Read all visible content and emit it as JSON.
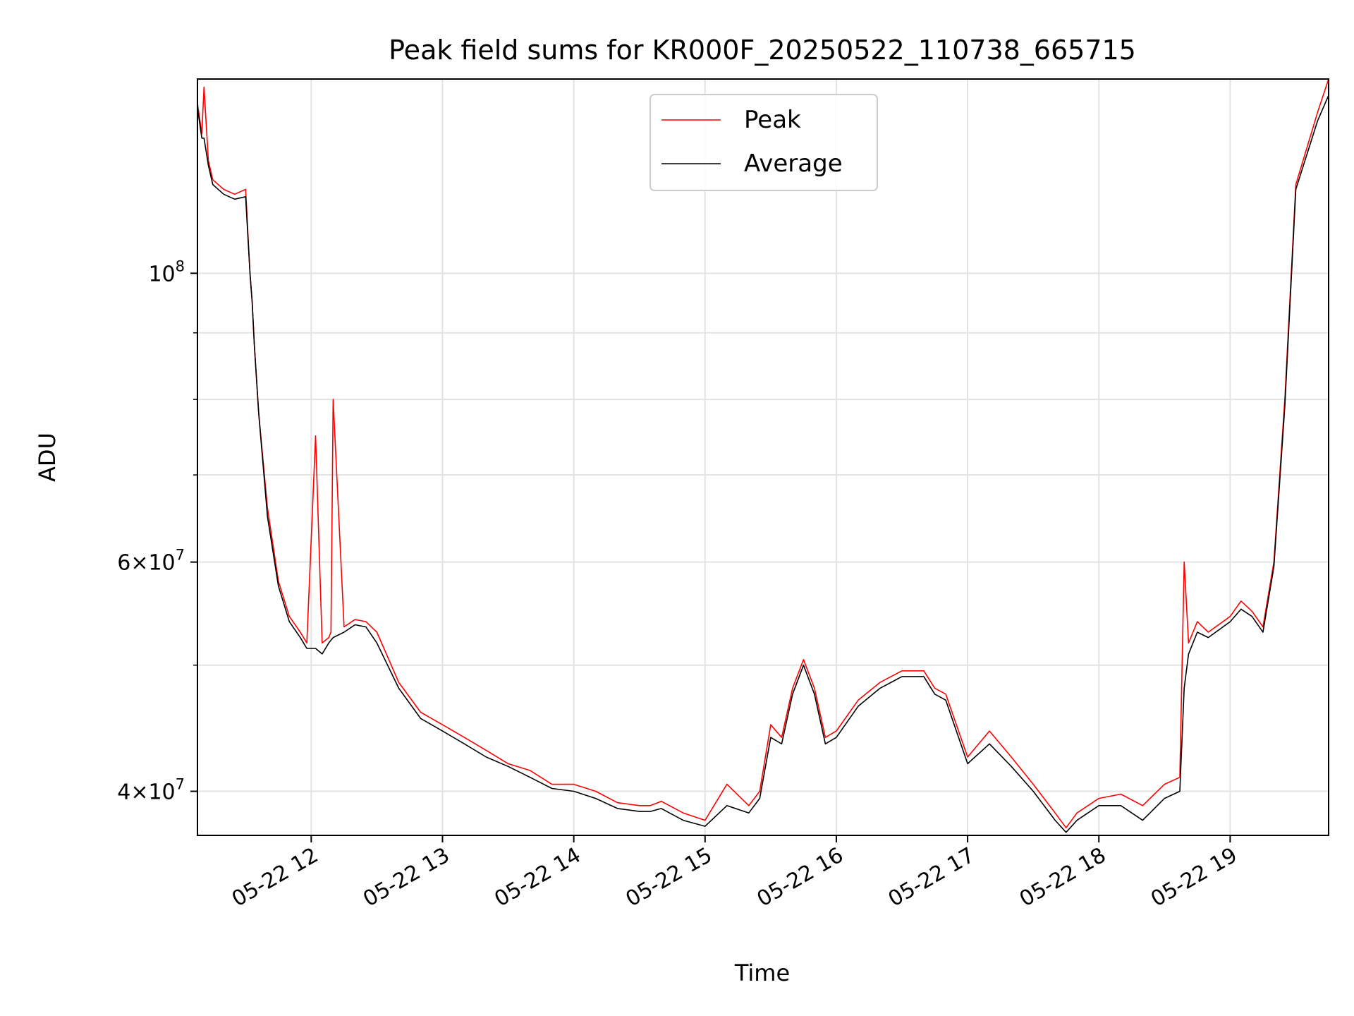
{
  "chart_data": {
    "type": "line",
    "title": "Peak field sums for KR000F_20250522_110738_665715",
    "xlabel": "Time",
    "ylabel": "ADU",
    "y_scale": "log",
    "ylim": [
      37000000,
      141000000
    ],
    "xlim": [
      "2025-05-22 11:08",
      "2025-05-22 19:45"
    ],
    "x_ticks": [
      "05-22 12",
      "05-22 13",
      "05-22 14",
      "05-22 15",
      "05-22 16",
      "05-22 17",
      "05-22 18",
      "05-22 19"
    ],
    "y_tick_labels": [
      {
        "value": 40000000,
        "mantissa": "4",
        "exponent": "7"
      },
      {
        "value": 60000000,
        "mantissa": "6",
        "exponent": "7"
      },
      {
        "value": 100000000,
        "mantissa": "",
        "exponent": "8"
      }
    ],
    "y_minor_ticks": [
      50000000,
      70000000,
      80000000,
      90000000
    ],
    "grid": true,
    "legend_position": "top-center",
    "series": [
      {
        "name": "Peak",
        "color": "#ff0000",
        "x": [
          "11:08",
          "11:10",
          "11:11",
          "11:13",
          "11:14",
          "11:15",
          "11:20",
          "11:25",
          "11:30",
          "11:32",
          "11:33",
          "11:34",
          "11:36",
          "11:40",
          "11:45",
          "11:50",
          "11:55",
          "11:58",
          "12:02",
          "12:05",
          "12:08",
          "12:09",
          "12:10",
          "12:15",
          "12:20",
          "12:25",
          "12:30",
          "12:40",
          "12:50",
          "13:00",
          "13:10",
          "13:20",
          "13:30",
          "13:40",
          "13:50",
          "14:00",
          "14:10",
          "14:20",
          "14:30",
          "14:35",
          "14:40",
          "14:50",
          "15:00",
          "15:10",
          "15:20",
          "15:25",
          "15:30",
          "15:35",
          "15:40",
          "15:45",
          "15:50",
          "15:55",
          "16:00",
          "16:10",
          "16:20",
          "16:30",
          "16:40",
          "16:45",
          "16:50",
          "17:00",
          "17:10",
          "17:20",
          "17:30",
          "17:40",
          "17:45",
          "17:50",
          "18:00",
          "18:10",
          "18:20",
          "18:30",
          "18:37",
          "18:39",
          "18:41",
          "18:45",
          "18:50",
          "19:00",
          "19:05",
          "19:10",
          "19:15",
          "19:20",
          "19:25",
          "19:30",
          "19:40",
          "19:45"
        ],
        "y": [
          135000000,
          128000000,
          139000000,
          122000000,
          120000000,
          118000000,
          116000000,
          115000000,
          116000000,
          100000000,
          95000000,
          88000000,
          78000000,
          66000000,
          58000000,
          54500000,
          53000000,
          52000000,
          75000000,
          52000000,
          52500000,
          53000000,
          80000000,
          53500000,
          54200000,
          54000000,
          53000000,
          48500000,
          46000000,
          45000000,
          44000000,
          43000000,
          42000000,
          41500000,
          40500000,
          40500000,
          40000000,
          39200000,
          39000000,
          39000000,
          39300000,
          38500000,
          38000000,
          40500000,
          39000000,
          40000000,
          45000000,
          44000000,
          48000000,
          50500000,
          48000000,
          44000000,
          44500000,
          47000000,
          48500000,
          49500000,
          49500000,
          48000000,
          47500000,
          42500000,
          44500000,
          42500000,
          40500000,
          38500000,
          37500000,
          38500000,
          39500000,
          39800000,
          39000000,
          40500000,
          41000000,
          60000000,
          52000000,
          54000000,
          53000000,
          54500000,
          56000000,
          55000000,
          53500000,
          60000000,
          80000000,
          117000000,
          133000000,
          141000000
        ]
      },
      {
        "name": "Average",
        "color": "#000000",
        "x": [
          "11:08",
          "11:10",
          "11:11",
          "11:13",
          "11:14",
          "11:15",
          "11:20",
          "11:25",
          "11:30",
          "11:32",
          "11:33",
          "11:34",
          "11:36",
          "11:40",
          "11:45",
          "11:50",
          "11:55",
          "11:58",
          "12:02",
          "12:05",
          "12:08",
          "12:10",
          "12:15",
          "12:20",
          "12:25",
          "12:30",
          "12:40",
          "12:50",
          "13:00",
          "13:10",
          "13:20",
          "13:30",
          "13:40",
          "13:50",
          "14:00",
          "14:10",
          "14:20",
          "14:30",
          "14:35",
          "14:40",
          "14:50",
          "15:00",
          "15:10",
          "15:20",
          "15:25",
          "15:30",
          "15:35",
          "15:40",
          "15:45",
          "15:50",
          "15:55",
          "16:00",
          "16:10",
          "16:20",
          "16:30",
          "16:40",
          "16:45",
          "16:50",
          "17:00",
          "17:10",
          "17:20",
          "17:30",
          "17:40",
          "17:45",
          "17:50",
          "18:00",
          "18:10",
          "18:20",
          "18:30",
          "18:37",
          "18:39",
          "18:41",
          "18:45",
          "18:50",
          "19:00",
          "19:05",
          "19:10",
          "19:15",
          "19:20",
          "19:25",
          "19:30",
          "19:40",
          "19:45"
        ],
        "y": [
          134000000,
          127000000,
          127000000,
          121000000,
          119000000,
          117000000,
          115000000,
          114000000,
          114500000,
          100000000,
          95000000,
          88000000,
          78000000,
          65000000,
          57500000,
          54000000,
          52500000,
          51500000,
          51500000,
          51000000,
          52000000,
          52500000,
          53000000,
          53700000,
          53500000,
          52000000,
          48000000,
          45500000,
          44500000,
          43500000,
          42500000,
          41800000,
          41000000,
          40200000,
          40000000,
          39500000,
          38800000,
          38600000,
          38600000,
          38800000,
          38000000,
          37600000,
          39000000,
          38500000,
          39500000,
          44000000,
          43500000,
          47500000,
          50000000,
          47500000,
          43500000,
          44000000,
          46500000,
          48000000,
          49000000,
          49000000,
          47500000,
          47000000,
          42000000,
          43500000,
          41800000,
          40000000,
          38000000,
          37200000,
          38000000,
          39000000,
          39000000,
          38000000,
          39500000,
          40000000,
          48000000,
          51000000,
          53000000,
          52500000,
          54000000,
          55200000,
          54500000,
          53000000,
          59500000,
          79000000,
          116000000,
          131000000,
          137000000
        ]
      }
    ]
  }
}
